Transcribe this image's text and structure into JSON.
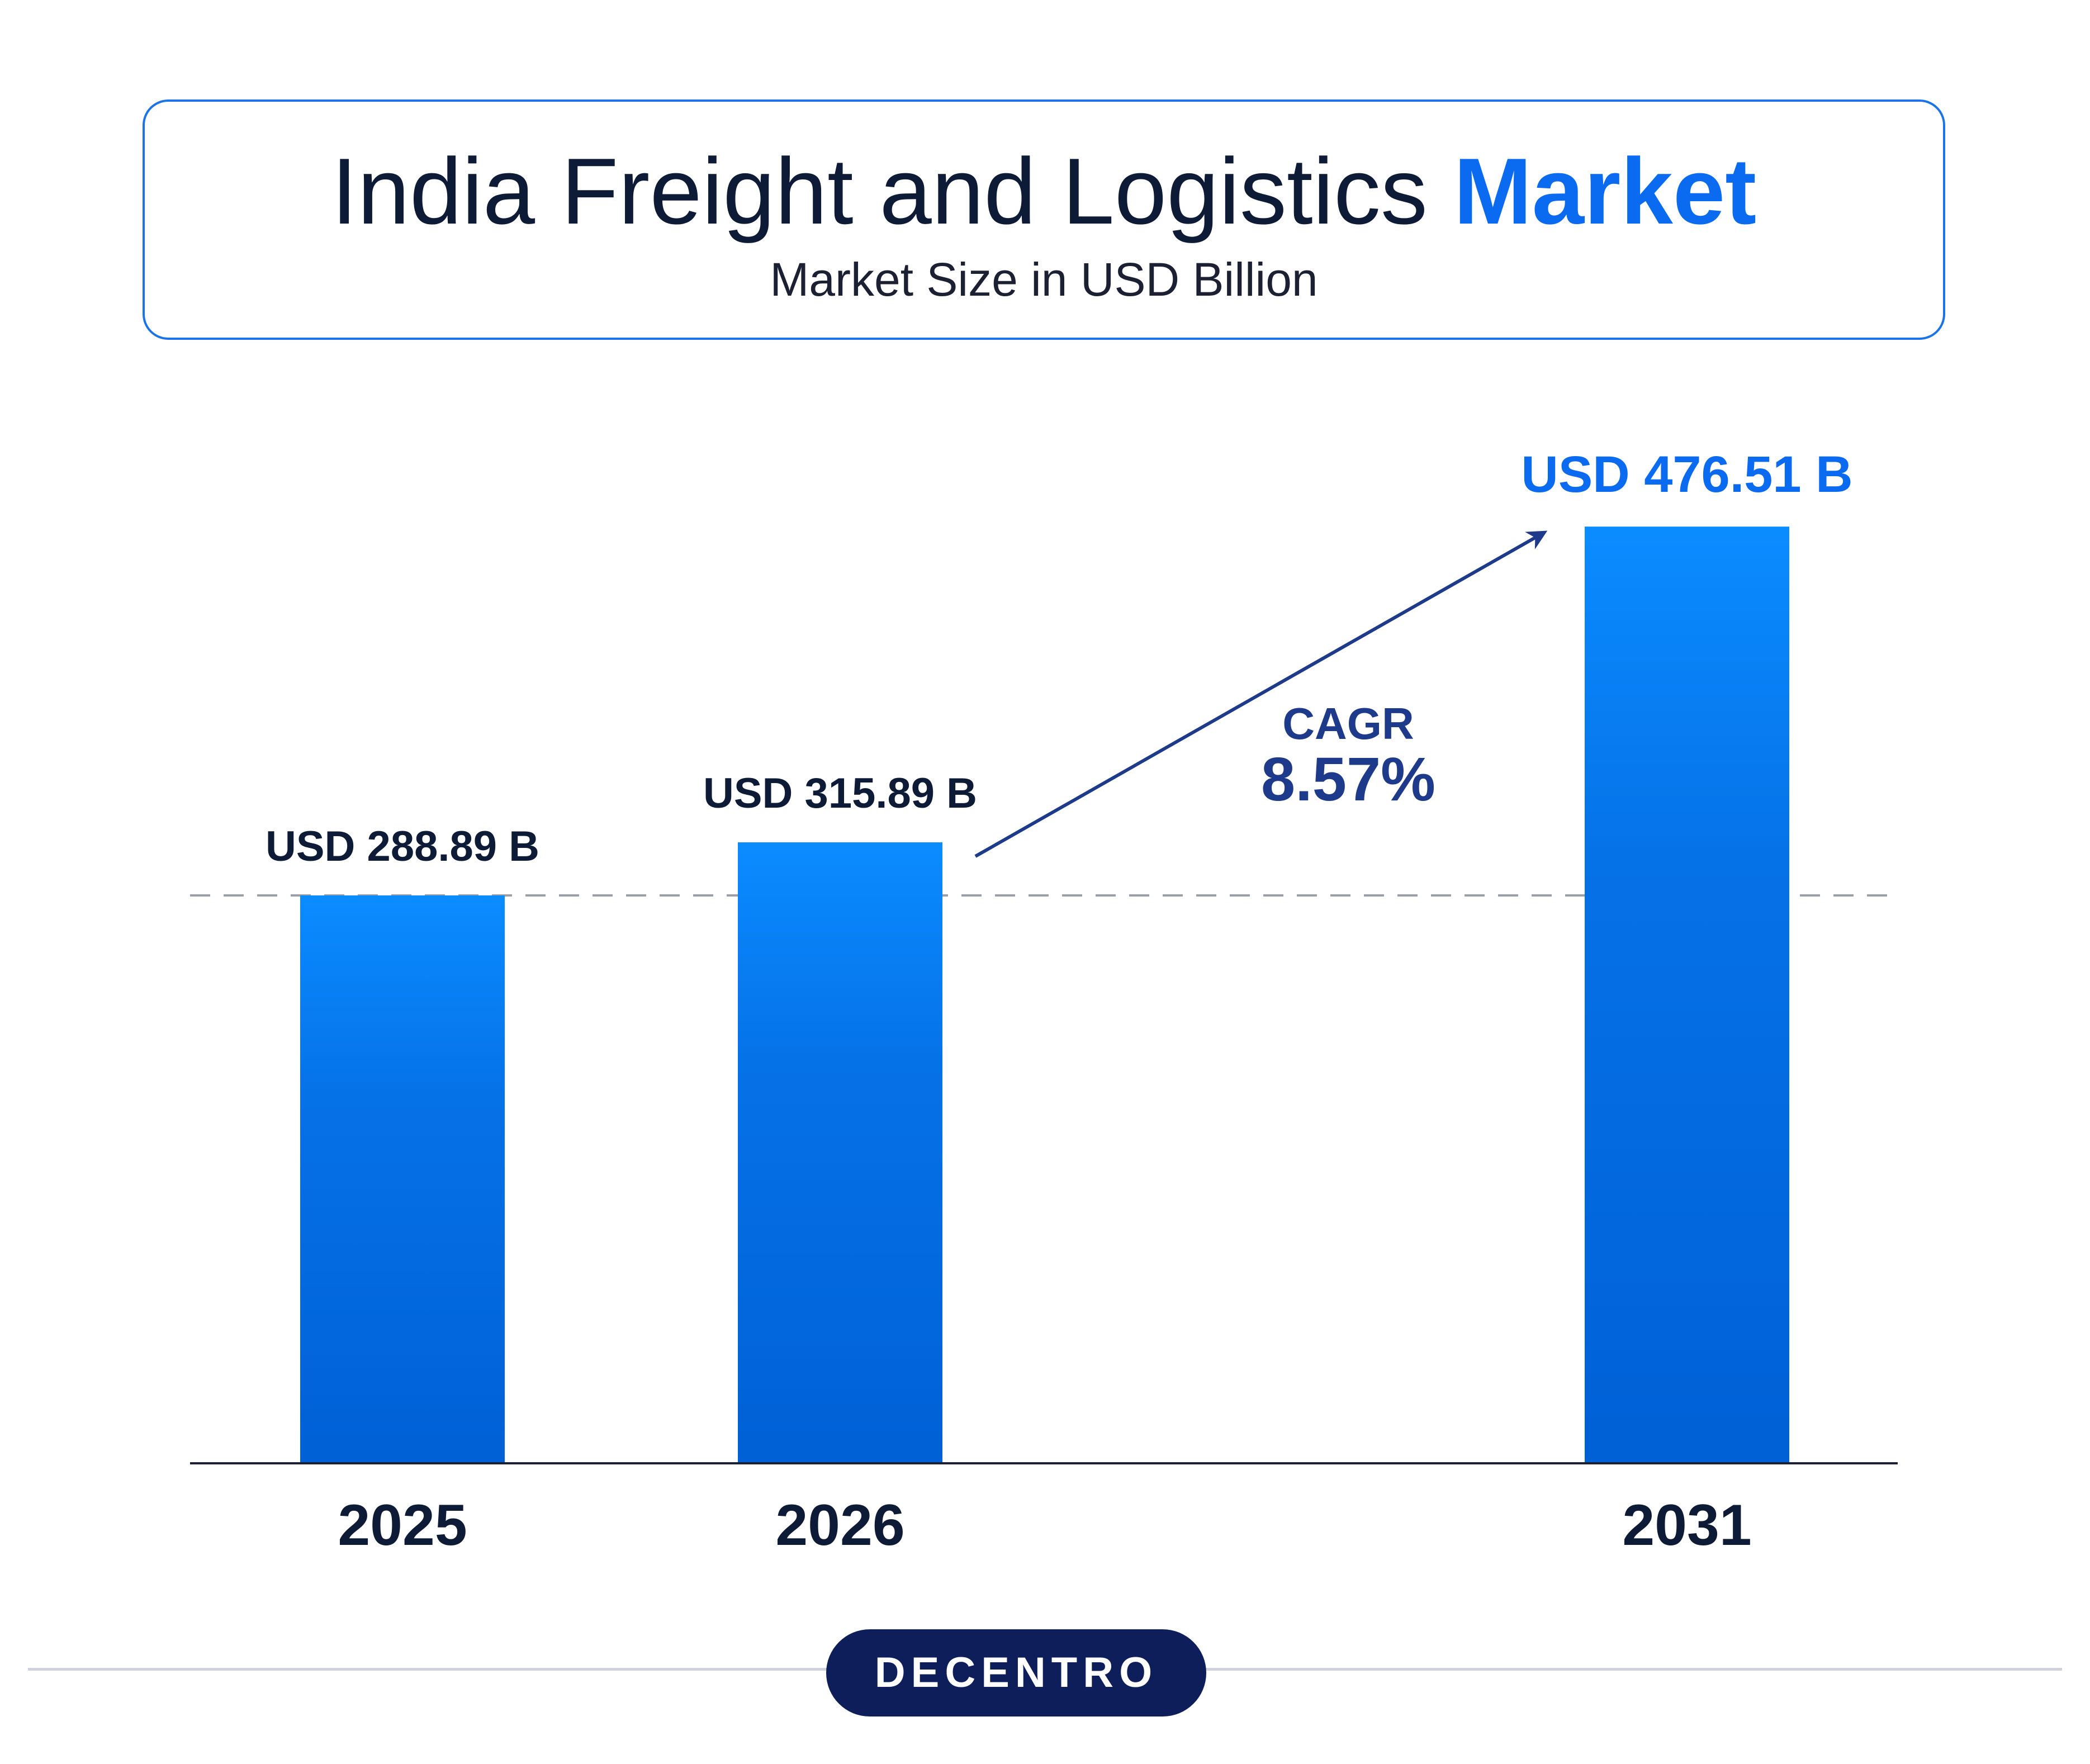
{
  "header": {
    "title_main": "India Freight and Logistics ",
    "title_highlight": "Market",
    "subtitle": "Market Size in USD Billion"
  },
  "chart_data": {
    "type": "bar",
    "title": "India Freight and Logistics Market",
    "subtitle": "Market Size in USD Billion",
    "categories": [
      "2025",
      "2026",
      "2031"
    ],
    "values": [
      288.89,
      315.89,
      476.51
    ],
    "value_labels": [
      "USD 288.89 B",
      "USD 315.89 B",
      "USD 476.51 B"
    ],
    "unit": "USD Billion",
    "annotation": {
      "label": "CAGR",
      "value": "8.57%"
    },
    "reference_line": 288.89,
    "grid": false,
    "legend": "none"
  },
  "colors": {
    "bar_top": "#0a8cff",
    "bar_bottom": "#0060d6",
    "highlight_blue": "#0a6bf0",
    "arrow_navy": "#1e3a8a",
    "text_dark": "#0d1b36",
    "logo_bg": "#0e1e5b"
  },
  "logo": {
    "text": "DECENTRO"
  }
}
